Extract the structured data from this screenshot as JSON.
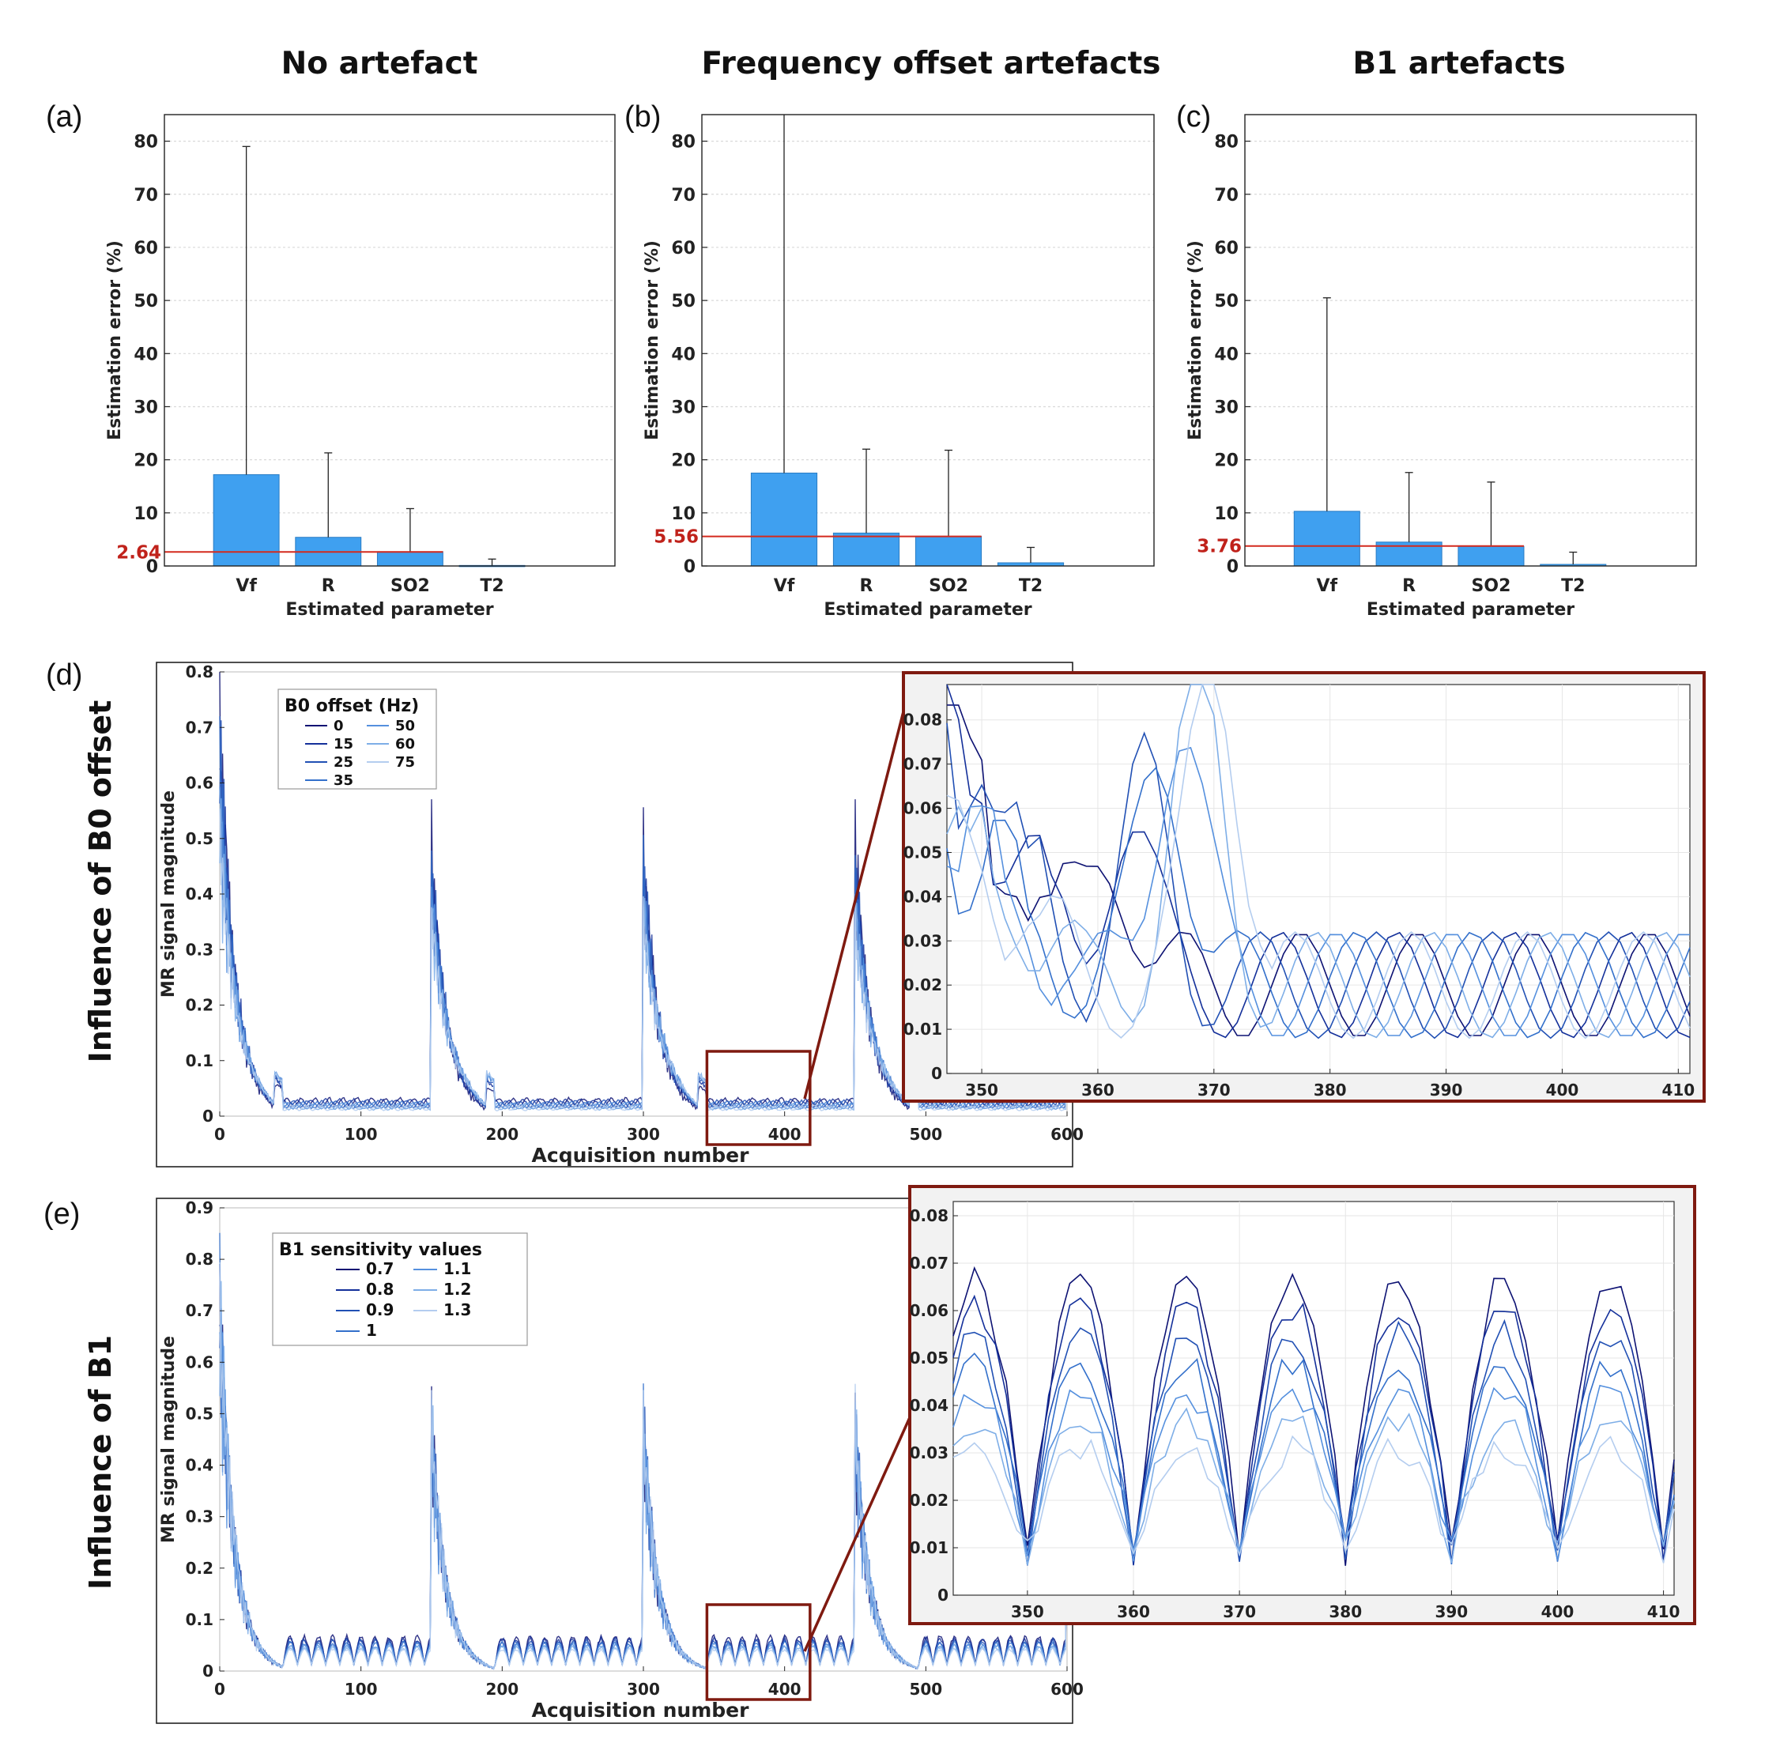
{
  "titles": {
    "a": "No artefact",
    "b": "Frequency offset artefacts",
    "c": "B1 artefacts"
  },
  "panel_labels": {
    "a": "(a)",
    "b": "(b)",
    "c": "(c)",
    "d": "(d)",
    "e": "(e)"
  },
  "side_labels": {
    "d": "Influence of B0 offset",
    "e": "Influence of B1"
  },
  "colors": {
    "bar": "#3fa0f0",
    "ref_line": "#d42a1e",
    "zoom_box": "#7f1a10",
    "series": [
      "#0d1273",
      "#14309a",
      "#2150b4",
      "#3370cb",
      "#5590de",
      "#7eaee7",
      "#b4cdef"
    ]
  },
  "chart_data": [
    {
      "id": "a",
      "type": "bar",
      "title": "No artefact",
      "categories": [
        "Vf",
        "R",
        "SO2",
        "T2"
      ],
      "values": [
        17.2,
        5.4,
        2.7,
        0.1
      ],
      "error_upper": [
        79,
        21.3,
        10.8,
        1.3
      ],
      "reference_value": 2.64,
      "reference_label": "2.64",
      "xlabel": "Estimated parameter",
      "ylabel": "Estimation error (%)",
      "ylim": [
        0,
        85
      ],
      "yticks": [
        0,
        10,
        20,
        30,
        40,
        50,
        60,
        70,
        80
      ]
    },
    {
      "id": "b",
      "type": "bar",
      "title": "Frequency offset artefacts",
      "categories": [
        "Vf",
        "R",
        "SO2",
        "T2"
      ],
      "values": [
        17.5,
        6.2,
        5.6,
        0.6
      ],
      "error_upper": [
        85,
        22,
        21.8,
        3.5
      ],
      "reference_value": 5.56,
      "reference_label": "5.56",
      "xlabel": "Estimated parameter",
      "ylabel": "Estimation error (%)",
      "ylim": [
        0,
        85
      ],
      "yticks": [
        0,
        10,
        20,
        30,
        40,
        50,
        60,
        70,
        80
      ]
    },
    {
      "id": "c",
      "type": "bar",
      "title": "B1 artefacts",
      "categories": [
        "Vf",
        "R",
        "SO2",
        "T2"
      ],
      "values": [
        10.3,
        4.5,
        3.7,
        0.3
      ],
      "error_upper": [
        50.5,
        17.6,
        15.8,
        2.6
      ],
      "reference_value": 3.76,
      "reference_label": "3.76",
      "xlabel": "Estimated parameter",
      "ylabel": "Estimation error (%)",
      "ylim": [
        0,
        85
      ],
      "yticks": [
        0,
        10,
        20,
        30,
        40,
        50,
        60,
        70,
        80
      ]
    },
    {
      "id": "d",
      "type": "line",
      "xlabel": "Acquisition number",
      "ylabel": "MR signal magnitude",
      "xlim": [
        0,
        600
      ],
      "ylim": [
        0,
        0.8
      ],
      "xticks": [
        0,
        100,
        200,
        300,
        400,
        500,
        600
      ],
      "yticks": [
        0,
        0.1,
        0.2,
        0.3,
        0.4,
        0.5,
        0.6,
        0.7,
        0.8
      ],
      "ytick_labels": [
        "0",
        "0.1",
        "0.2",
        "0.3",
        "0.4",
        "0.5",
        "0.6",
        "0.7",
        "0.8"
      ],
      "legend_title": "B0 offset (Hz)",
      "legend_col1": [
        "0",
        "15",
        "25",
        "35"
      ],
      "legend_col2": [
        "50",
        "60",
        "75"
      ],
      "series_names": [
        "0",
        "15",
        "25",
        "35",
        "50",
        "60",
        "75"
      ],
      "zoom_range": {
        "x": [
          345,
          418
        ],
        "y": [
          0,
          0.12
        ]
      },
      "inset": {
        "xlim": [
          347,
          411
        ],
        "ylim": [
          0,
          0.088
        ],
        "xticks": [
          350,
          360,
          370,
          380,
          390,
          400,
          410
        ],
        "yticks": [
          0,
          0.01,
          0.02,
          0.03,
          0.04,
          0.05,
          0.06,
          0.07,
          0.08
        ],
        "ytick_labels": [
          "0",
          "0.01",
          "0.02",
          "0.03",
          "0.04",
          "0.05",
          "0.06",
          "0.07",
          "0.08"
        ]
      },
      "seed": 11
    },
    {
      "id": "e",
      "type": "line",
      "xlabel": "Acquisition number",
      "ylabel": "MR signal magnitude",
      "xlim": [
        0,
        600
      ],
      "ylim": [
        0,
        0.9
      ],
      "xticks": [
        0,
        100,
        200,
        300,
        400,
        500,
        600
      ],
      "yticks": [
        0,
        0.1,
        0.2,
        0.3,
        0.4,
        0.5,
        0.6,
        0.7,
        0.8,
        0.9
      ],
      "ytick_labels": [
        "0",
        "0.1",
        "0.2",
        "0.3",
        "0.4",
        "0.5",
        "0.6",
        "0.7",
        "0.8",
        "0.9"
      ],
      "legend_title": "B1 sensitivity values",
      "legend_col1": [
        "0.7",
        "0.8",
        "0.9",
        "1"
      ],
      "legend_col2": [
        "1.1",
        "1.2",
        "1.3"
      ],
      "series_names": [
        "0.7",
        "0.8",
        "0.9",
        "1",
        "1.1",
        "1.2",
        "1.3"
      ],
      "zoom_range": {
        "x": [
          345,
          418
        ],
        "y": [
          0,
          0.12
        ]
      },
      "inset": {
        "xlim": [
          343,
          411
        ],
        "ylim": [
          0,
          0.083
        ],
        "xticks": [
          350,
          360,
          370,
          380,
          390,
          400,
          410
        ],
        "yticks": [
          0,
          0.01,
          0.02,
          0.03,
          0.04,
          0.05,
          0.06,
          0.07,
          0.08
        ],
        "ytick_labels": [
          "0",
          "0.01",
          "0.02",
          "0.03",
          "0.04",
          "0.05",
          "0.06",
          "0.07",
          "0.08"
        ]
      },
      "seed": 29
    }
  ]
}
